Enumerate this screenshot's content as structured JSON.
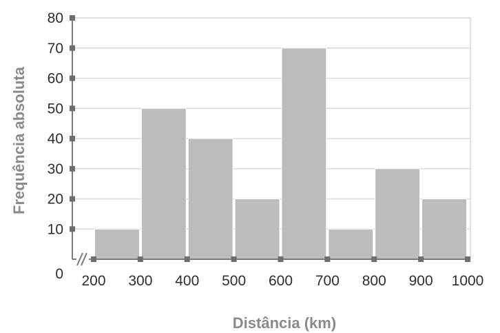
{
  "chart_data": {
    "type": "bar",
    "title": "",
    "xlabel": "Distância (km)",
    "ylabel": "Frequência absoluta",
    "bin_edges": [
      200,
      300,
      400,
      500,
      600,
      700,
      800,
      900,
      1000
    ],
    "values": [
      10,
      50,
      40,
      20,
      70,
      10,
      30,
      20
    ],
    "xlim": [
      200,
      1000
    ],
    "ylim": [
      0,
      80
    ],
    "x_ticks": [
      "200",
      "300",
      "400",
      "500",
      "600",
      "700",
      "800",
      "900",
      "1000"
    ],
    "y_ticks": [
      "0",
      "10",
      "20",
      "30",
      "40",
      "50",
      "60",
      "70",
      "80"
    ],
    "axis_break": true,
    "grid": "horizontal",
    "colors": {
      "bar": "#bcbcbc",
      "bar_edge": "#ffffff",
      "grid": "#d9d9d9",
      "axis": "#7a7a7a",
      "tick_mark": "#6e6e6e"
    }
  }
}
